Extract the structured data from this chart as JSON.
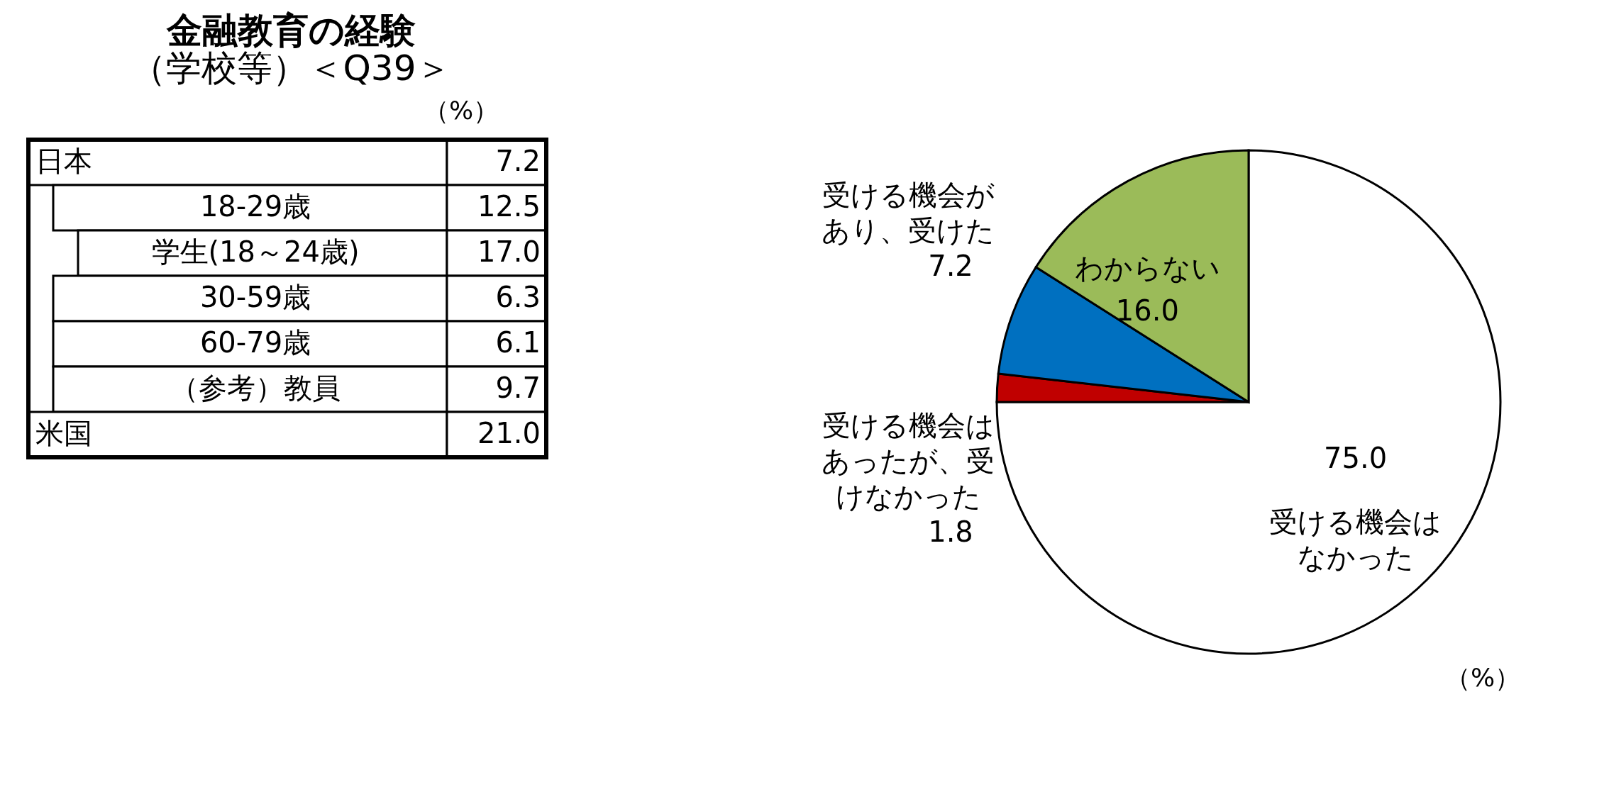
{
  "chart_data": [
    {
      "type": "other",
      "title": "金融教育の経験",
      "subtitle": "（学校等）＜Q39＞",
      "annotations": [
        "（%）"
      ],
      "categories": [
        "日本",
        "18-29歳",
        "学生(18～24歳)",
        "30-59歳",
        "60-79歳",
        "（参考）教員",
        "米国"
      ],
      "values": [
        7.2,
        12.5,
        17.0,
        6.3,
        6.1,
        9.7,
        21.0
      ],
      "value_labels": [
        "7.2",
        "12.5",
        "17.0",
        "6.3",
        "6.1",
        "9.7",
        "21.0"
      ]
    },
    {
      "type": "pie",
      "annotations": [
        "（%）"
      ],
      "categories": [
        "受ける機会はなかった",
        "受ける機会はあったが、受けなかった",
        "受ける機会があり、受けた",
        "わからない"
      ],
      "values": [
        75.0,
        1.8,
        7.2,
        16.0
      ],
      "colors": [
        "#ffffff",
        "#c00000",
        "#0070c0",
        "#9bbb59"
      ],
      "value_labels": [
        "75.0",
        "1.8",
        "7.2",
        "16.0"
      ]
    }
  ]
}
